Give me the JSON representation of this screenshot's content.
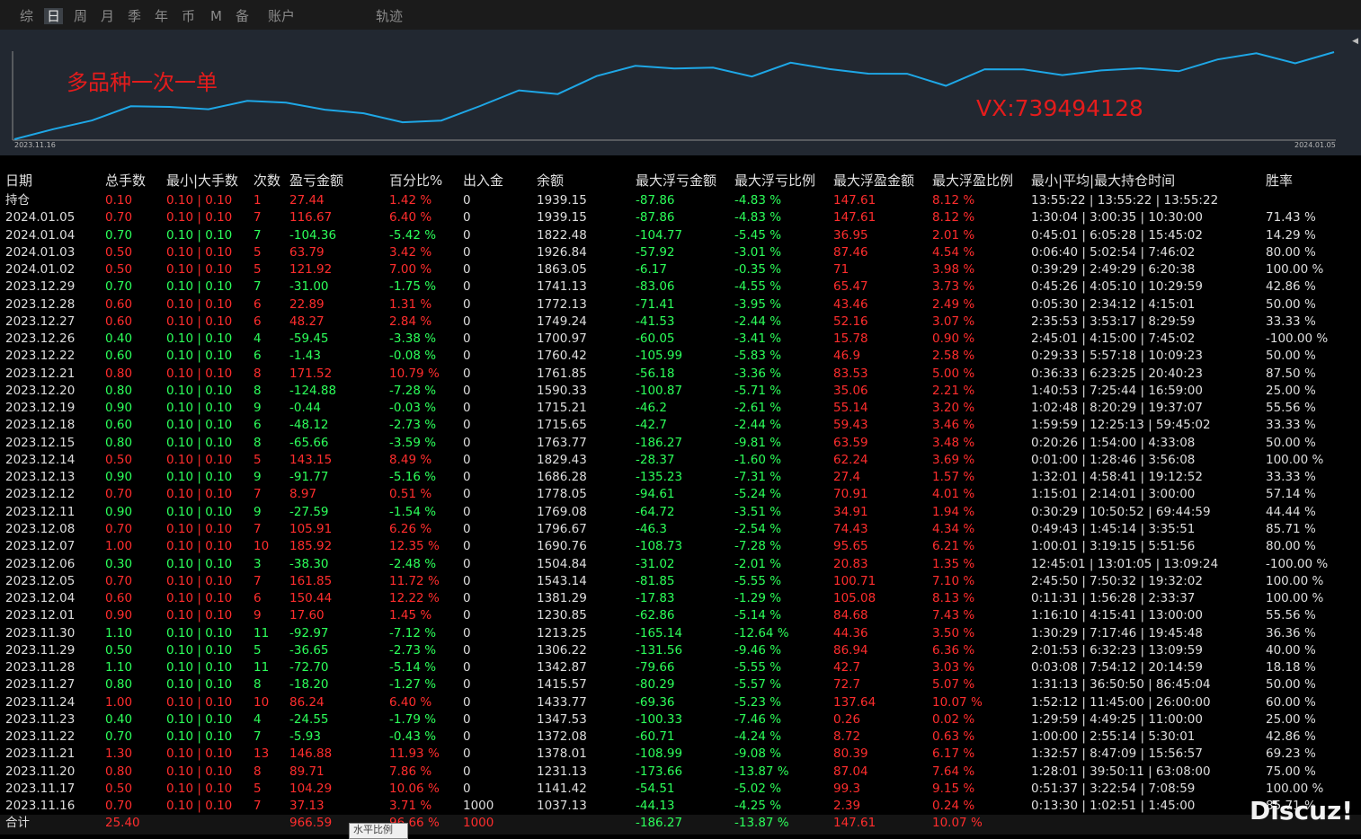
{
  "tabs": [
    "综",
    "日",
    "周",
    "月",
    "季",
    "年",
    "币",
    "M",
    "备",
    "账户",
    "轨迹"
  ],
  "active_tab": "日",
  "chart": {
    "watermark_title": "多品种一次一单",
    "watermark_contact": "VX:739494128",
    "start_date": "2023.11.16",
    "end_date": "2024.01.05",
    "line_color": "#1ea7e6",
    "balance_series": [
      1037.13,
      1141.42,
      1231.13,
      1378.01,
      1372.08,
      1347.53,
      1433.77,
      1415.57,
      1342.87,
      1306.22,
      1213.25,
      1230.85,
      1381.29,
      1543.14,
      1504.84,
      1690.76,
      1796.67,
      1769.08,
      1778.05,
      1686.28,
      1829.43,
      1763.77,
      1715.65,
      1715.21,
      1590.33,
      1761.85,
      1760.42,
      1700.97,
      1749.24,
      1772.13,
      1741.13,
      1863.05,
      1926.84,
      1822.48,
      1939.15
    ]
  },
  "table": {
    "headers": [
      "日期",
      "总手数",
      "最小|大手数",
      "次数",
      "盈亏金额",
      "百分比%",
      "出入金",
      "余额",
      "最大浮亏金额",
      "最大浮亏比例",
      "最大浮盈金额",
      "最大浮盈比例",
      "最小|平均|最大持仓时间",
      "胜率"
    ],
    "rows": [
      {
        "date": "持仓",
        "lots": "0.10",
        "minmax": "0.10 | 0.10",
        "count": "1",
        "pnl": "27.44",
        "pct": "1.42 %",
        "flow": "0",
        "balance": "1939.15",
        "maxloss": "-87.86",
        "maxloss_pct": "-4.83 %",
        "maxprofit": "147.61",
        "maxprofit_pct": "8.12 %",
        "hold": "13:55:22 | 13:55:22 | 13:55:22",
        "win": "",
        "tone": "r"
      },
      {
        "date": "2024.01.05",
        "lots": "0.70",
        "minmax": "0.10 | 0.10",
        "count": "7",
        "pnl": "116.67",
        "pct": "6.40 %",
        "flow": "0",
        "balance": "1939.15",
        "maxloss": "-87.86",
        "maxloss_pct": "-4.83 %",
        "maxprofit": "147.61",
        "maxprofit_pct": "8.12 %",
        "hold": "1:30:04 | 3:00:35 | 10:30:00",
        "win": "71.43 %",
        "tone": "r"
      },
      {
        "date": "2024.01.04",
        "lots": "0.70",
        "minmax": "0.10 | 0.10",
        "count": "7",
        "pnl": "-104.36",
        "pct": "-5.42 %",
        "flow": "0",
        "balance": "1822.48",
        "maxloss": "-104.77",
        "maxloss_pct": "-5.45 %",
        "maxprofit": "36.95",
        "maxprofit_pct": "2.01 %",
        "hold": "0:45:01 | 6:05:28 | 15:45:02",
        "win": "14.29 %",
        "tone": "g"
      },
      {
        "date": "2024.01.03",
        "lots": "0.50",
        "minmax": "0.10 | 0.10",
        "count": "5",
        "pnl": "63.79",
        "pct": "3.42 %",
        "flow": "0",
        "balance": "1926.84",
        "maxloss": "-57.92",
        "maxloss_pct": "-3.01 %",
        "maxprofit": "87.46",
        "maxprofit_pct": "4.54 %",
        "hold": "0:06:40 | 5:02:54 | 7:46:02",
        "win": "80.00 %",
        "tone": "r"
      },
      {
        "date": "2024.01.02",
        "lots": "0.50",
        "minmax": "0.10 | 0.10",
        "count": "5",
        "pnl": "121.92",
        "pct": "7.00 %",
        "flow": "0",
        "balance": "1863.05",
        "maxloss": "-6.17",
        "maxloss_pct": "-0.35 %",
        "maxprofit": "71",
        "maxprofit_pct": "3.98 %",
        "hold": "0:39:29 | 2:49:29 | 6:20:38",
        "win": "100.00 %",
        "tone": "r"
      },
      {
        "date": "2023.12.29",
        "lots": "0.70",
        "minmax": "0.10 | 0.10",
        "count": "7",
        "pnl": "-31.00",
        "pct": "-1.75 %",
        "flow": "0",
        "balance": "1741.13",
        "maxloss": "-83.06",
        "maxloss_pct": "-4.55 %",
        "maxprofit": "65.47",
        "maxprofit_pct": "3.73 %",
        "hold": "0:45:26 | 4:05:10 | 10:29:59",
        "win": "42.86 %",
        "tone": "g"
      },
      {
        "date": "2023.12.28",
        "lots": "0.60",
        "minmax": "0.10 | 0.10",
        "count": "6",
        "pnl": "22.89",
        "pct": "1.31 %",
        "flow": "0",
        "balance": "1772.13",
        "maxloss": "-71.41",
        "maxloss_pct": "-3.95 %",
        "maxprofit": "43.46",
        "maxprofit_pct": "2.49 %",
        "hold": "0:05:30 | 2:34:12 | 4:15:01",
        "win": "50.00 %",
        "tone": "r"
      },
      {
        "date": "2023.12.27",
        "lots": "0.60",
        "minmax": "0.10 | 0.10",
        "count": "6",
        "pnl": "48.27",
        "pct": "2.84 %",
        "flow": "0",
        "balance": "1749.24",
        "maxloss": "-41.53",
        "maxloss_pct": "-2.44 %",
        "maxprofit": "52.16",
        "maxprofit_pct": "3.07 %",
        "hold": "2:35:53 | 3:53:17 | 8:29:59",
        "win": "33.33 %",
        "tone": "r"
      },
      {
        "date": "2023.12.26",
        "lots": "0.40",
        "minmax": "0.10 | 0.10",
        "count": "4",
        "pnl": "-59.45",
        "pct": "-3.38 %",
        "flow": "0",
        "balance": "1700.97",
        "maxloss": "-60.05",
        "maxloss_pct": "-3.41 %",
        "maxprofit": "15.78",
        "maxprofit_pct": "0.90 %",
        "hold": "2:45:01 | 4:15:00 | 7:45:02",
        "win": "-100.00 %",
        "tone": "g"
      },
      {
        "date": "2023.12.22",
        "lots": "0.60",
        "minmax": "0.10 | 0.10",
        "count": "6",
        "pnl": "-1.43",
        "pct": "-0.08 %",
        "flow": "0",
        "balance": "1760.42",
        "maxloss": "-105.99",
        "maxloss_pct": "-5.83 %",
        "maxprofit": "46.9",
        "maxprofit_pct": "2.58 %",
        "hold": "0:29:33 | 5:57:18 | 10:09:23",
        "win": "50.00 %",
        "tone": "g"
      },
      {
        "date": "2023.12.21",
        "lots": "0.80",
        "minmax": "0.10 | 0.10",
        "count": "8",
        "pnl": "171.52",
        "pct": "10.79 %",
        "flow": "0",
        "balance": "1761.85",
        "maxloss": "-56.18",
        "maxloss_pct": "-3.36 %",
        "maxprofit": "83.53",
        "maxprofit_pct": "5.00 %",
        "hold": "0:36:33 | 6:23:25 | 20:40:23",
        "win": "87.50 %",
        "tone": "r"
      },
      {
        "date": "2023.12.20",
        "lots": "0.80",
        "minmax": "0.10 | 0.10",
        "count": "8",
        "pnl": "-124.88",
        "pct": "-7.28 %",
        "flow": "0",
        "balance": "1590.33",
        "maxloss": "-100.87",
        "maxloss_pct": "-5.71 %",
        "maxprofit": "35.06",
        "maxprofit_pct": "2.21 %",
        "hold": "1:40:53 | 7:25:44 | 16:59:00",
        "win": "25.00 %",
        "tone": "g"
      },
      {
        "date": "2023.12.19",
        "lots": "0.90",
        "minmax": "0.10 | 0.10",
        "count": "9",
        "pnl": "-0.44",
        "pct": "-0.03 %",
        "flow": "0",
        "balance": "1715.21",
        "maxloss": "-46.2",
        "maxloss_pct": "-2.61 %",
        "maxprofit": "55.14",
        "maxprofit_pct": "3.20 %",
        "hold": "1:02:48 | 8:20:29 | 19:37:07",
        "win": "55.56 %",
        "tone": "g"
      },
      {
        "date": "2023.12.18",
        "lots": "0.60",
        "minmax": "0.10 | 0.10",
        "count": "6",
        "pnl": "-48.12",
        "pct": "-2.73 %",
        "flow": "0",
        "balance": "1715.65",
        "maxloss": "-42.7",
        "maxloss_pct": "-2.44 %",
        "maxprofit": "59.43",
        "maxprofit_pct": "3.46 %",
        "hold": "1:59:59 | 12:25:13 | 59:45:02",
        "win": "33.33 %",
        "tone": "g"
      },
      {
        "date": "2023.12.15",
        "lots": "0.80",
        "minmax": "0.10 | 0.10",
        "count": "8",
        "pnl": "-65.66",
        "pct": "-3.59 %",
        "flow": "0",
        "balance": "1763.77",
        "maxloss": "-186.27",
        "maxloss_pct": "-9.81 %",
        "maxprofit": "63.59",
        "maxprofit_pct": "3.48 %",
        "hold": "0:20:26 | 1:54:00 | 4:33:08",
        "win": "50.00 %",
        "tone": "g"
      },
      {
        "date": "2023.12.14",
        "lots": "0.50",
        "minmax": "0.10 | 0.10",
        "count": "5",
        "pnl": "143.15",
        "pct": "8.49 %",
        "flow": "0",
        "balance": "1829.43",
        "maxloss": "-28.37",
        "maxloss_pct": "-1.60 %",
        "maxprofit": "62.24",
        "maxprofit_pct": "3.69 %",
        "hold": "0:01:00 | 1:28:46 | 3:56:08",
        "win": "100.00 %",
        "tone": "r"
      },
      {
        "date": "2023.12.13",
        "lots": "0.90",
        "minmax": "0.10 | 0.10",
        "count": "9",
        "pnl": "-91.77",
        "pct": "-5.16 %",
        "flow": "0",
        "balance": "1686.28",
        "maxloss": "-135.23",
        "maxloss_pct": "-7.31 %",
        "maxprofit": "27.4",
        "maxprofit_pct": "1.57 %",
        "hold": "1:32:01 | 4:58:41 | 19:12:52",
        "win": "33.33 %",
        "tone": "g"
      },
      {
        "date": "2023.12.12",
        "lots": "0.70",
        "minmax": "0.10 | 0.10",
        "count": "7",
        "pnl": "8.97",
        "pct": "0.51 %",
        "flow": "0",
        "balance": "1778.05",
        "maxloss": "-94.61",
        "maxloss_pct": "-5.24 %",
        "maxprofit": "70.91",
        "maxprofit_pct": "4.01 %",
        "hold": "1:15:01 | 2:14:01 | 3:00:00",
        "win": "57.14 %",
        "tone": "r"
      },
      {
        "date": "2023.12.11",
        "lots": "0.90",
        "minmax": "0.10 | 0.10",
        "count": "9",
        "pnl": "-27.59",
        "pct": "-1.54 %",
        "flow": "0",
        "balance": "1769.08",
        "maxloss": "-64.72",
        "maxloss_pct": "-3.51 %",
        "maxprofit": "34.91",
        "maxprofit_pct": "1.94 %",
        "hold": "0:30:29 | 10:50:52 | 69:44:59",
        "win": "44.44 %",
        "tone": "g"
      },
      {
        "date": "2023.12.08",
        "lots": "0.70",
        "minmax": "0.10 | 0.10",
        "count": "7",
        "pnl": "105.91",
        "pct": "6.26 %",
        "flow": "0",
        "balance": "1796.67",
        "maxloss": "-46.3",
        "maxloss_pct": "-2.54 %",
        "maxprofit": "74.43",
        "maxprofit_pct": "4.34 %",
        "hold": "0:49:43 | 1:45:14 | 3:35:51",
        "win": "85.71 %",
        "tone": "r"
      },
      {
        "date": "2023.12.07",
        "lots": "1.00",
        "minmax": "0.10 | 0.10",
        "count": "10",
        "pnl": "185.92",
        "pct": "12.35 %",
        "flow": "0",
        "balance": "1690.76",
        "maxloss": "-108.73",
        "maxloss_pct": "-7.28 %",
        "maxprofit": "95.65",
        "maxprofit_pct": "6.21 %",
        "hold": "1:00:01 | 3:19:15 | 5:51:56",
        "win": "80.00 %",
        "tone": "r"
      },
      {
        "date": "2023.12.06",
        "lots": "0.30",
        "minmax": "0.10 | 0.10",
        "count": "3",
        "pnl": "-38.30",
        "pct": "-2.48 %",
        "flow": "0",
        "balance": "1504.84",
        "maxloss": "-31.02",
        "maxloss_pct": "-2.01 %",
        "maxprofit": "20.83",
        "maxprofit_pct": "1.35 %",
        "hold": "12:45:01 | 13:01:05 | 13:09:24",
        "win": "-100.00 %",
        "tone": "g"
      },
      {
        "date": "2023.12.05",
        "lots": "0.70",
        "minmax": "0.10 | 0.10",
        "count": "7",
        "pnl": "161.85",
        "pct": "11.72 %",
        "flow": "0",
        "balance": "1543.14",
        "maxloss": "-81.85",
        "maxloss_pct": "-5.55 %",
        "maxprofit": "100.71",
        "maxprofit_pct": "7.10 %",
        "hold": "2:45:50 | 7:50:32 | 19:32:02",
        "win": "100.00 %",
        "tone": "r"
      },
      {
        "date": "2023.12.04",
        "lots": "0.60",
        "minmax": "0.10 | 0.10",
        "count": "6",
        "pnl": "150.44",
        "pct": "12.22 %",
        "flow": "0",
        "balance": "1381.29",
        "maxloss": "-17.83",
        "maxloss_pct": "-1.29 %",
        "maxprofit": "105.08",
        "maxprofit_pct": "8.13 %",
        "hold": "0:11:31 | 1:56:28 | 2:33:37",
        "win": "100.00 %",
        "tone": "r"
      },
      {
        "date": "2023.12.01",
        "lots": "0.90",
        "minmax": "0.10 | 0.10",
        "count": "9",
        "pnl": "17.60",
        "pct": "1.45 %",
        "flow": "0",
        "balance": "1230.85",
        "maxloss": "-62.86",
        "maxloss_pct": "-5.14 %",
        "maxprofit": "84.68",
        "maxprofit_pct": "7.43 %",
        "hold": "1:16:10 | 4:15:41 | 13:00:00",
        "win": "55.56 %",
        "tone": "r"
      },
      {
        "date": "2023.11.30",
        "lots": "1.10",
        "minmax": "0.10 | 0.10",
        "count": "11",
        "pnl": "-92.97",
        "pct": "-7.12 %",
        "flow": "0",
        "balance": "1213.25",
        "maxloss": "-165.14",
        "maxloss_pct": "-12.64 %",
        "maxprofit": "44.36",
        "maxprofit_pct": "3.50 %",
        "hold": "1:30:29 | 7:17:46 | 19:45:48",
        "win": "36.36 %",
        "tone": "g"
      },
      {
        "date": "2023.11.29",
        "lots": "0.50",
        "minmax": "0.10 | 0.10",
        "count": "5",
        "pnl": "-36.65",
        "pct": "-2.73 %",
        "flow": "0",
        "balance": "1306.22",
        "maxloss": "-131.56",
        "maxloss_pct": "-9.46 %",
        "maxprofit": "86.94",
        "maxprofit_pct": "6.36 %",
        "hold": "2:01:53 | 6:32:23 | 13:09:59",
        "win": "40.00 %",
        "tone": "g"
      },
      {
        "date": "2023.11.28",
        "lots": "1.10",
        "minmax": "0.10 | 0.10",
        "count": "11",
        "pnl": "-72.70",
        "pct": "-5.14 %",
        "flow": "0",
        "balance": "1342.87",
        "maxloss": "-79.66",
        "maxloss_pct": "-5.55 %",
        "maxprofit": "42.7",
        "maxprofit_pct": "3.03 %",
        "hold": "0:03:08 | 7:54:12 | 20:14:59",
        "win": "18.18 %",
        "tone": "g"
      },
      {
        "date": "2023.11.27",
        "lots": "0.80",
        "minmax": "0.10 | 0.10",
        "count": "8",
        "pnl": "-18.20",
        "pct": "-1.27 %",
        "flow": "0",
        "balance": "1415.57",
        "maxloss": "-80.29",
        "maxloss_pct": "-5.57 %",
        "maxprofit": "72.7",
        "maxprofit_pct": "5.07 %",
        "hold": "1:31:13 | 36:50:50 | 86:45:04",
        "win": "50.00 %",
        "tone": "g"
      },
      {
        "date": "2023.11.24",
        "lots": "1.00",
        "minmax": "0.10 | 0.10",
        "count": "10",
        "pnl": "86.24",
        "pct": "6.40 %",
        "flow": "0",
        "balance": "1433.77",
        "maxloss": "-69.36",
        "maxloss_pct": "-5.23 %",
        "maxprofit": "137.64",
        "maxprofit_pct": "10.07 %",
        "hold": "1:52:12 | 11:45:00 | 26:00:00",
        "win": "60.00 %",
        "tone": "r"
      },
      {
        "date": "2023.11.23",
        "lots": "0.40",
        "minmax": "0.10 | 0.10",
        "count": "4",
        "pnl": "-24.55",
        "pct": "-1.79 %",
        "flow": "0",
        "balance": "1347.53",
        "maxloss": "-100.33",
        "maxloss_pct": "-7.46 %",
        "maxprofit": "0.26",
        "maxprofit_pct": "0.02 %",
        "hold": "1:29:59 | 4:49:25 | 11:00:00",
        "win": "25.00 %",
        "tone": "g"
      },
      {
        "date": "2023.11.22",
        "lots": "0.70",
        "minmax": "0.10 | 0.10",
        "count": "7",
        "pnl": "-5.93",
        "pct": "-0.43 %",
        "flow": "0",
        "balance": "1372.08",
        "maxloss": "-60.71",
        "maxloss_pct": "-4.24 %",
        "maxprofit": "8.72",
        "maxprofit_pct": "0.63 %",
        "hold": "1:00:00 | 2:55:14 | 5:30:01",
        "win": "42.86 %",
        "tone": "g"
      },
      {
        "date": "2023.11.21",
        "lots": "1.30",
        "minmax": "0.10 | 0.10",
        "count": "13",
        "pnl": "146.88",
        "pct": "11.93 %",
        "flow": "0",
        "balance": "1378.01",
        "maxloss": "-108.99",
        "maxloss_pct": "-9.08 %",
        "maxprofit": "80.39",
        "maxprofit_pct": "6.17 %",
        "hold": "1:32:57 | 8:47:09 | 15:56:57",
        "win": "69.23 %",
        "tone": "r"
      },
      {
        "date": "2023.11.20",
        "lots": "0.80",
        "minmax": "0.10 | 0.10",
        "count": "8",
        "pnl": "89.71",
        "pct": "7.86 %",
        "flow": "0",
        "balance": "1231.13",
        "maxloss": "-173.66",
        "maxloss_pct": "-13.87 %",
        "maxprofit": "87.04",
        "maxprofit_pct": "7.64 %",
        "hold": "1:28:01 | 39:50:11 | 63:08:00",
        "win": "75.00 %",
        "tone": "r"
      },
      {
        "date": "2023.11.17",
        "lots": "0.50",
        "minmax": "0.10 | 0.10",
        "count": "5",
        "pnl": "104.29",
        "pct": "10.06 %",
        "flow": "0",
        "balance": "1141.42",
        "maxloss": "-54.51",
        "maxloss_pct": "-5.02 %",
        "maxprofit": "99.3",
        "maxprofit_pct": "9.15 %",
        "hold": "0:51:37 | 3:22:54 | 7:08:59",
        "win": "100.00 %",
        "tone": "r"
      },
      {
        "date": "2023.11.16",
        "lots": "0.70",
        "minmax": "0.10 | 0.10",
        "count": "7",
        "pnl": "37.13",
        "pct": "3.71 %",
        "flow": "1000",
        "balance": "1037.13",
        "maxloss": "-44.13",
        "maxloss_pct": "-4.25 %",
        "maxprofit": "2.39",
        "maxprofit_pct": "0.24 %",
        "hold": "0:13:30 | 1:02:51 | 1:45:00",
        "win": "85.71 %",
        "tone": "r"
      }
    ],
    "total": {
      "label": "合计",
      "lots": "25.40",
      "pnl": "966.59",
      "pct": "96.66 %",
      "flow": "1000",
      "maxloss": "-186.27",
      "maxloss_pct": "-13.87 %",
      "maxprofit": "147.61",
      "maxprofit_pct": "10.07 %"
    }
  },
  "tooltip": "水平比例",
  "site_watermark": "Discuz!",
  "colors": {
    "positive": "#ff2d2d",
    "negative": "#2cff5a",
    "neutral": "#dedede",
    "chart_bg": "#222831"
  }
}
